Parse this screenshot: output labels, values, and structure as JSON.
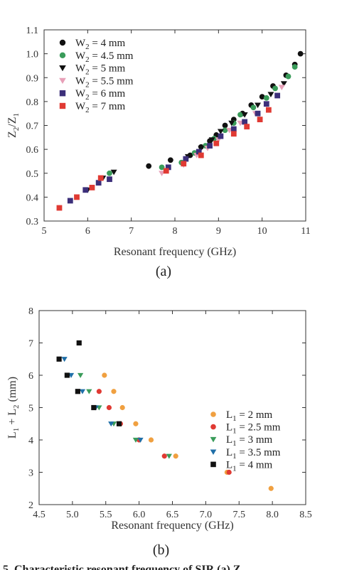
{
  "chart_data": [
    {
      "type": "scatter",
      "panel_label": "(a)",
      "xlabel": "Resonant frequency (GHz)",
      "ylabel_main": "Z",
      "ylabel_parts": [
        "2",
        "/Z",
        "1"
      ],
      "xlim": [
        5,
        11
      ],
      "ylim": [
        0.3,
        1.1
      ],
      "xticks": [
        5,
        6,
        7,
        8,
        9,
        10,
        11
      ],
      "yticks": [
        0.3,
        0.4,
        0.5,
        0.6,
        0.7,
        0.8,
        0.9,
        1.0,
        1.1
      ],
      "ytick_labels": [
        "0.3",
        "0.4",
        "0.5",
        "0.6",
        "0.7",
        "0.8",
        "0.9",
        "1.0",
        "1.1"
      ],
      "legend_position": "top-left",
      "series": [
        {
          "name_prefix": "W",
          "name_sub": "2",
          "name_suffix": " =  4 mm",
          "marker": "circle",
          "color": "#111111",
          "points": [
            [
              7.4,
              0.53
            ],
            [
              7.9,
              0.555
            ],
            [
              8.35,
              0.575
            ],
            [
              8.6,
              0.61
            ],
            [
              8.8,
              0.635
            ],
            [
              8.95,
              0.66
            ],
            [
              9.15,
              0.7
            ],
            [
              9.35,
              0.725
            ],
            [
              9.55,
              0.75
            ],
            [
              9.75,
              0.785
            ],
            [
              10.0,
              0.82
            ],
            [
              10.25,
              0.865
            ],
            [
              10.55,
              0.91
            ],
            [
              10.75,
              0.955
            ],
            [
              10.88,
              1.0
            ]
          ]
        },
        {
          "name_prefix": "W",
          "name_sub": "2",
          "name_suffix": " = 4.5 mm",
          "marker": "circle",
          "color": "#3a9c5a",
          "points": [
            [
              6.5,
              0.5
            ],
            [
              7.7,
              0.525
            ],
            [
              8.15,
              0.545
            ],
            [
              8.45,
              0.585
            ],
            [
              8.7,
              0.615
            ],
            [
              8.9,
              0.645
            ],
            [
              9.15,
              0.68
            ],
            [
              9.35,
              0.71
            ],
            [
              9.5,
              0.745
            ],
            [
              9.8,
              0.775
            ],
            [
              10.1,
              0.815
            ],
            [
              10.3,
              0.855
            ],
            [
              10.6,
              0.905
            ],
            [
              10.75,
              0.945
            ]
          ]
        },
        {
          "name_prefix": "W",
          "name_sub": "2",
          "name_suffix": " = 5 mm",
          "marker": "triangle-down",
          "color": "#111111",
          "points": [
            [
              6.0,
              0.43
            ],
            [
              6.35,
              0.48
            ],
            [
              6.6,
              0.505
            ],
            [
              8.3,
              0.57
            ],
            [
              8.6,
              0.605
            ],
            [
              8.85,
              0.64
            ],
            [
              9.05,
              0.675
            ],
            [
              9.3,
              0.71
            ],
            [
              9.6,
              0.745
            ],
            [
              9.9,
              0.785
            ],
            [
              10.2,
              0.83
            ],
            [
              10.5,
              0.875
            ]
          ]
        },
        {
          "name_prefix": "W",
          "name_sub": "2",
          "name_suffix": " = 5.5 mm",
          "marker": "triangle-down",
          "color": "#e8a0b8",
          "points": [
            [
              7.7,
              0.5
            ],
            [
              8.2,
              0.535
            ],
            [
              8.5,
              0.575
            ],
            [
              8.75,
              0.605
            ],
            [
              9.0,
              0.64
            ],
            [
              9.25,
              0.68
            ],
            [
              9.5,
              0.71
            ],
            [
              9.85,
              0.75
            ],
            [
              10.1,
              0.79
            ],
            [
              10.45,
              0.86
            ]
          ]
        },
        {
          "name_prefix": "W",
          "name_sub": "2",
          "name_suffix": " = 6 mm",
          "marker": "square",
          "color": "#3c2f7a",
          "points": [
            [
              5.6,
              0.385
            ],
            [
              5.95,
              0.43
            ],
            [
              6.25,
              0.46
            ],
            [
              6.5,
              0.475
            ],
            [
              7.85,
              0.525
            ],
            [
              8.25,
              0.56
            ],
            [
              8.55,
              0.59
            ],
            [
              8.8,
              0.615
            ],
            [
              9.05,
              0.655
            ],
            [
              9.35,
              0.685
            ],
            [
              9.6,
              0.715
            ],
            [
              9.9,
              0.75
            ],
            [
              10.1,
              0.79
            ],
            [
              10.35,
              0.825
            ]
          ]
        },
        {
          "name_prefix": "W",
          "name_sub": "2",
          "name_suffix": " = 7 mm",
          "marker": "square",
          "color": "#e03a33",
          "points": [
            [
              5.35,
              0.355
            ],
            [
              5.75,
              0.4
            ],
            [
              6.1,
              0.44
            ],
            [
              6.3,
              0.48
            ],
            [
              7.8,
              0.51
            ],
            [
              8.2,
              0.54
            ],
            [
              8.6,
              0.575
            ],
            [
              8.95,
              0.625
            ],
            [
              9.35,
              0.665
            ],
            [
              9.65,
              0.695
            ],
            [
              9.95,
              0.725
            ],
            [
              10.15,
              0.765
            ]
          ]
        }
      ]
    },
    {
      "type": "scatter",
      "panel_label": "(b)",
      "xlabel": "Resonant frequency (GHz)",
      "ylabel_parts": [
        "L",
        "1",
        " + L",
        "2",
        "  (mm)"
      ],
      "xlim": [
        4.5,
        8.5
      ],
      "ylim": [
        2,
        8
      ],
      "xticks": [
        4.5,
        5.0,
        5.5,
        6.0,
        6.5,
        7.0,
        7.5,
        8.0,
        8.5
      ],
      "xtick_labels": [
        "4.5",
        "5.0",
        "5.5",
        "6.0",
        "6.5",
        "7.0",
        "7.5",
        "8.0",
        "8.5"
      ],
      "yticks": [
        2,
        3,
        4,
        5,
        6,
        7,
        8
      ],
      "legend_position": "right",
      "series": [
        {
          "name_prefix": "L",
          "name_sub": "1",
          "name_suffix": " = 2 mm",
          "marker": "circle",
          "color": "#f0a040",
          "points": [
            [
              5.48,
              6.0
            ],
            [
              5.62,
              5.5
            ],
            [
              5.75,
              5.0
            ],
            [
              5.95,
              4.5
            ],
            [
              6.18,
              4.0
            ],
            [
              6.55,
              3.5
            ],
            [
              7.32,
              3.0
            ],
            [
              7.98,
              2.5
            ]
          ]
        },
        {
          "name_prefix": "L",
          "name_sub": "1",
          "name_suffix": " = 2.5 mm",
          "marker": "circle",
          "color": "#e03a33",
          "points": [
            [
              5.4,
              5.5
            ],
            [
              5.55,
              5.0
            ],
            [
              5.72,
              4.5
            ],
            [
              6.0,
              4.0
            ],
            [
              6.38,
              3.5
            ],
            [
              7.35,
              3.0
            ]
          ]
        },
        {
          "name_prefix": "L",
          "name_sub": "1",
          "name_suffix": " = 3 mm",
          "marker": "triangle-down",
          "color": "#3a9c5a",
          "points": [
            [
              5.12,
              6.0
            ],
            [
              5.25,
              5.5
            ],
            [
              5.4,
              5.0
            ],
            [
              5.62,
              4.5
            ],
            [
              5.95,
              4.0
            ],
            [
              6.45,
              3.5
            ]
          ]
        },
        {
          "name_prefix": "L",
          "name_sub": "1",
          "name_suffix": " = 3.5 mm",
          "marker": "triangle-down",
          "color": "#1f6fa8",
          "points": [
            [
              4.88,
              6.5
            ],
            [
              4.98,
              6.0
            ],
            [
              5.15,
              5.5
            ],
            [
              5.35,
              5.0
            ],
            [
              5.58,
              4.5
            ],
            [
              6.02,
              4.0
            ]
          ]
        },
        {
          "name_prefix": "L",
          "name_sub": "1",
          "name_suffix": " = 4 mm",
          "marker": "square",
          "color": "#111111",
          "points": [
            [
              5.1,
              7.0
            ],
            [
              4.8,
              6.5
            ],
            [
              4.92,
              6.0
            ],
            [
              5.08,
              5.5
            ],
            [
              5.32,
              5.0
            ],
            [
              5.7,
              4.5
            ]
          ]
        }
      ]
    }
  ],
  "caption_fragment": "5.  Characteristic resonant frequency of SIR (a) Z"
}
